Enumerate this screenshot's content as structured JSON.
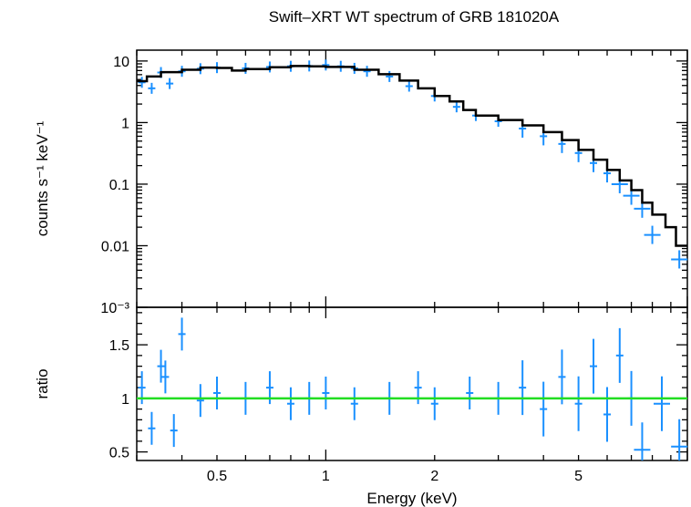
{
  "chart_data": [
    {
      "type": "scatter",
      "panel": "spectrum",
      "title": "Swift–XRT WT spectrum of GRB 181020A",
      "ylabel": "counts s⁻¹ keV⁻¹",
      "xscale": "log",
      "yscale": "log",
      "xlim": [
        0.3,
        10
      ],
      "ylim": [
        0.001,
        15
      ],
      "ytick_labels": [
        "10",
        "1",
        "0.1",
        "0.01",
        "10⁻³"
      ],
      "ytick_values": [
        10,
        1,
        0.1,
        0.01,
        0.001
      ],
      "series": [
        {
          "style": "points with error bars",
          "color": "#1a90ff",
          "points": [
            [
              0.31,
              4.5
            ],
            [
              0.33,
              3.6
            ],
            [
              0.35,
              6.5
            ],
            [
              0.37,
              4.3
            ],
            [
              0.4,
              6.8
            ],
            [
              0.45,
              7.5
            ],
            [
              0.5,
              7.8
            ],
            [
              0.6,
              7.6
            ],
            [
              0.7,
              8.0
            ],
            [
              0.8,
              8.2
            ],
            [
              0.9,
              8.3
            ],
            [
              1.0,
              8.6
            ],
            [
              1.1,
              8.2
            ],
            [
              1.2,
              7.6
            ],
            [
              1.3,
              6.8
            ],
            [
              1.5,
              5.6
            ],
            [
              1.7,
              3.9
            ],
            [
              2.0,
              2.7
            ],
            [
              2.3,
              1.8
            ],
            [
              2.6,
              1.3
            ],
            [
              3.0,
              1.05
            ],
            [
              3.5,
              0.8
            ],
            [
              4.0,
              0.6
            ],
            [
              4.5,
              0.45
            ],
            [
              5.0,
              0.32
            ],
            [
              5.5,
              0.22
            ],
            [
              6.0,
              0.15
            ],
            [
              6.5,
              0.1
            ],
            [
              7.0,
              0.065
            ],
            [
              7.5,
              0.04
            ],
            [
              8.0,
              0.015
            ],
            [
              9.5,
              0.006
            ]
          ]
        },
        {
          "style": "model step line",
          "color": "#000000",
          "points": [
            [
              0.3,
              4.7
            ],
            [
              0.32,
              5.6
            ],
            [
              0.35,
              6.6
            ],
            [
              0.4,
              7.2
            ],
            [
              0.45,
              7.8
            ],
            [
              0.5,
              7.7
            ],
            [
              0.55,
              7.0
            ],
            [
              0.6,
              7.4
            ],
            [
              0.7,
              7.9
            ],
            [
              0.8,
              8.3
            ],
            [
              0.9,
              8.2
            ],
            [
              1.0,
              8.0
            ],
            [
              1.2,
              7.2
            ],
            [
              1.4,
              6.1
            ],
            [
              1.6,
              4.8
            ],
            [
              1.8,
              3.6
            ],
            [
              2.0,
              2.7
            ],
            [
              2.2,
              2.2
            ],
            [
              2.4,
              1.6
            ],
            [
              2.6,
              1.3
            ],
            [
              3.0,
              1.1
            ],
            [
              3.5,
              0.9
            ],
            [
              4.0,
              0.7
            ],
            [
              4.5,
              0.52
            ],
            [
              5.0,
              0.36
            ],
            [
              5.5,
              0.25
            ],
            [
              6.0,
              0.17
            ],
            [
              6.5,
              0.115
            ],
            [
              7.0,
              0.08
            ],
            [
              7.5,
              0.05
            ],
            [
              8.0,
              0.032
            ],
            [
              8.7,
              0.02
            ],
            [
              9.3,
              0.01
            ],
            [
              10.0,
              0.01
            ]
          ]
        }
      ]
    },
    {
      "type": "scatter",
      "panel": "ratio",
      "xlabel": "Energy (keV)",
      "ylabel": "ratio",
      "xscale": "log",
      "xlim": [
        0.3,
        10
      ],
      "ylim": [
        0.42,
        1.85
      ],
      "xtick_labels": [
        "0.5",
        "1",
        "2",
        "5"
      ],
      "xtick_values": [
        0.5,
        1,
        2,
        5
      ],
      "ytick_labels": [
        "0.5",
        "1",
        "1.5"
      ],
      "ytick_values": [
        0.5,
        1,
        1.5
      ],
      "reference_line": {
        "y": 1,
        "color": "#22dd22"
      },
      "series": [
        {
          "style": "points with error bars",
          "color": "#1a90ff",
          "points": [
            [
              0.31,
              1.1
            ],
            [
              0.33,
              0.72
            ],
            [
              0.35,
              1.3
            ],
            [
              0.36,
              1.2
            ],
            [
              0.38,
              0.7
            ],
            [
              0.4,
              1.6
            ],
            [
              0.45,
              0.98
            ],
            [
              0.5,
              1.05
            ],
            [
              0.6,
              1.0
            ],
            [
              0.7,
              1.1
            ],
            [
              0.8,
              0.95
            ],
            [
              0.9,
              1.0
            ],
            [
              1.0,
              1.05
            ],
            [
              1.2,
              0.95
            ],
            [
              1.5,
              1.0
            ],
            [
              1.8,
              1.1
            ],
            [
              2.0,
              0.95
            ],
            [
              2.5,
              1.05
            ],
            [
              3.0,
              1.0
            ],
            [
              3.5,
              1.1
            ],
            [
              4.0,
              0.9
            ],
            [
              4.5,
              1.2
            ],
            [
              5.0,
              0.95
            ],
            [
              5.5,
              1.3
            ],
            [
              6.0,
              0.85
            ],
            [
              6.5,
              1.4
            ],
            [
              7.0,
              1.0
            ],
            [
              7.5,
              0.52
            ],
            [
              8.5,
              0.95
            ],
            [
              9.5,
              0.55
            ]
          ]
        }
      ]
    }
  ]
}
